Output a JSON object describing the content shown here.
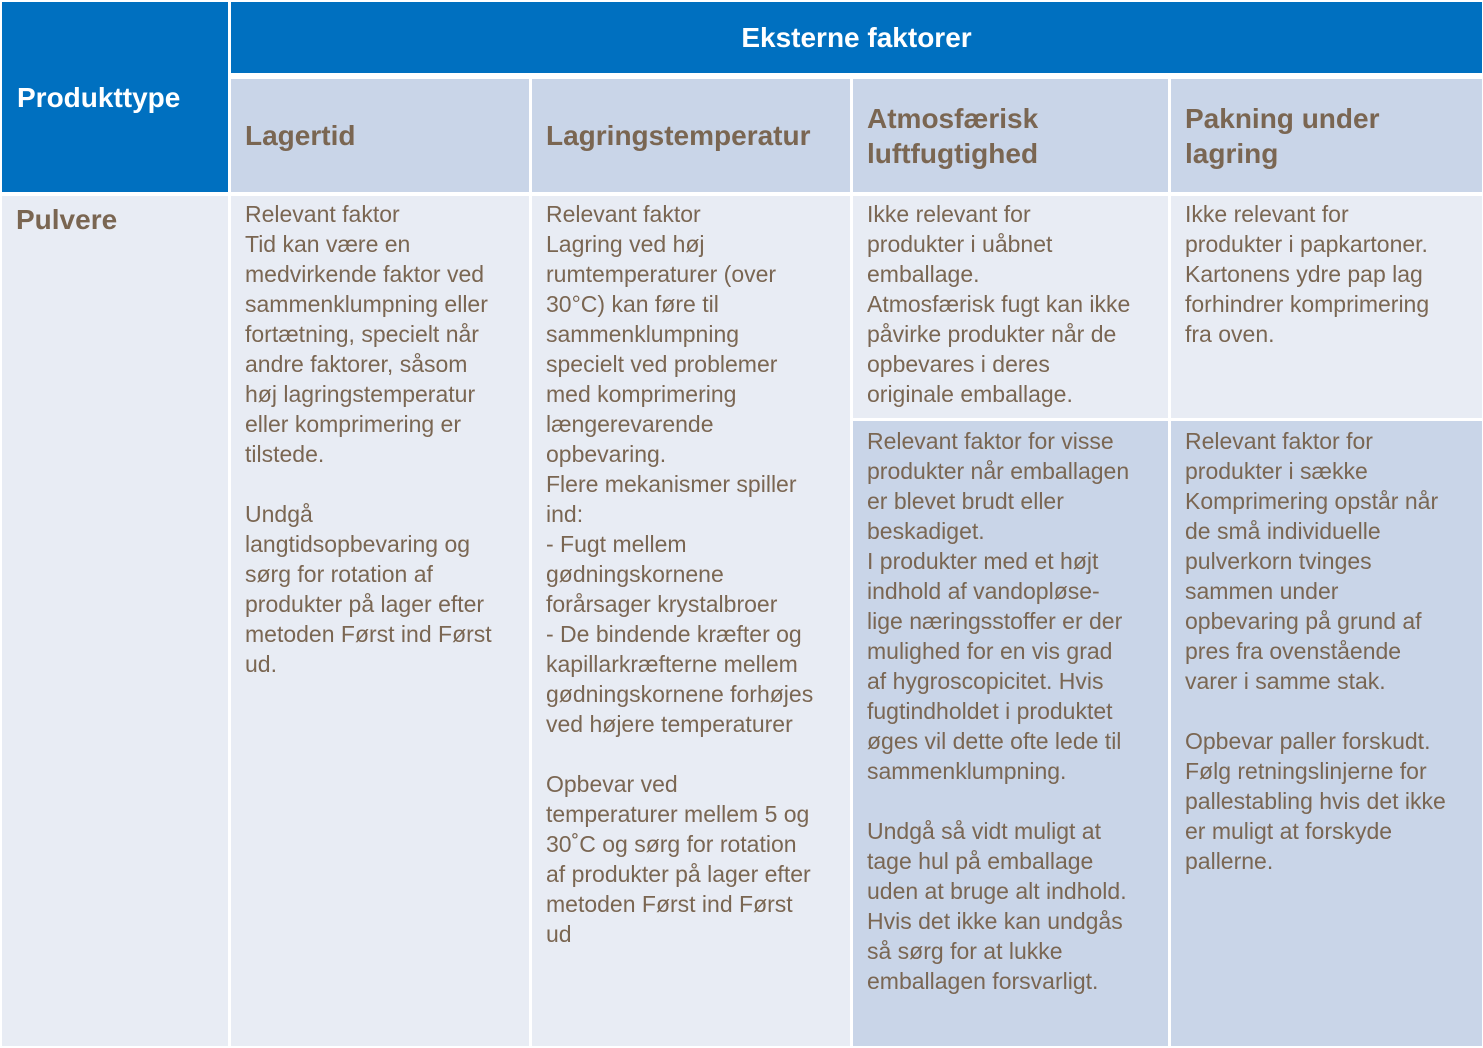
{
  "header": {
    "row_label": "Produkttype",
    "group_label": "Eksterne faktorer",
    "columns": [
      "Lagertid",
      "Lagringstemperatur",
      "Atmosfærisk\nluftfugtighed",
      "Pakning under\nlagring"
    ]
  },
  "rows": [
    {
      "product": "Pulvere",
      "lagertid": "Relevant faktor\nTid kan være en\nmedvirkende faktor ved\nsammenklumpning eller\nfortætning, specielt når\nandre faktorer, såsom\nhøj lagringstemperatur\neller komprimering er\ntilstede.\n\nUndgå\nlangtidsopbevaring og\nsørg for rotation af\nprodukter på lager efter\nmetoden Først ind Først\nud.",
      "temperatur": "Relevant faktor\nLagring ved høj\nrumtemperaturer (over\n30°C) kan føre til\nsammenklumpning\nspecielt ved problemer\nmed komprimering\nlængerevarende\nopbevaring.\nFlere mekanismer spiller\nind:\n- Fugt mellem\ngødningskornene\nforårsager krystalbroer\n- De bindende kræfter og\nkapillarkræfterne mellem\ngødningskornene forhøjes\nved højere temperaturer\n\nOpbevar ved\ntemperaturer mellem 5 og\n30˚C og sørg for rotation\naf produkter på lager efter\nmetoden Først ind Først\nud",
      "fugt_uabnet": "Ikke relevant for\nprodukter i uåbnet\nemballage.\nAtmosfærisk fugt kan ikke\npåvirke produkter når de\nopbevares i deres\noriginale emballage.",
      "fugt_brudt": "Relevant faktor for visse\nprodukter når emballagen\ner blevet brudt eller\nbeskadiget.\nI produkter med et højt\nindhold af vandopløse-\nlige næringsstoffer er der\nmulighed for en vis grad\naf hygroscopicitet. Hvis\nfugtindholdet i produktet\nøges vil dette ofte lede til\nsammenklumpning.\n\nUndgå så vidt muligt at\ntage hul på emballage\nuden at bruge alt indhold.\nHvis det ikke kan undgås\nså sørg for at lukke\nemballagen forsvarligt.",
      "pakning_karton": "Ikke relevant for\nprodukter i papkartoner.\nKartonens ydre pap lag\nforhindrer komprimering\nfra oven.",
      "pakning_saekke": "Relevant faktor for\nprodukter i sække\nKomprimering opstår når\nde små individuelle\npulverkorn tvinges\nsammen under\nopbevaring på grund af\npres fra ovenstående\nvarer  i samme stak.\n\nOpbevar  paller forskudt.\nFølg retningslinjerne for\npallestabling hvis det ikke\ner muligt at forskyde\npallerne."
    }
  ],
  "colors": {
    "header_blue": "#0070C0",
    "subheader": "#C9D5E8",
    "body": "#E8ECF4",
    "text": "#7A6652"
  }
}
